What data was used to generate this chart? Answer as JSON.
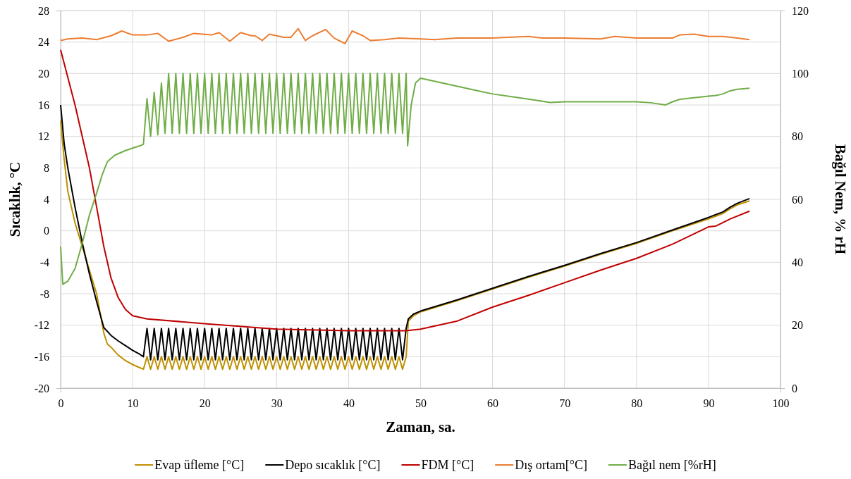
{
  "chart_data": {
    "type": "line",
    "xlabel": "Zaman, sa.",
    "ylabel": "Sıcaklık, °C",
    "y2label": "Bağıl Nem, % rH",
    "xlim": [
      0,
      100
    ],
    "xticks": [
      0,
      10,
      20,
      30,
      40,
      50,
      60,
      70,
      80,
      90,
      100
    ],
    "ylim": [
      -20,
      28
    ],
    "yticks": [
      -20,
      -16,
      -12,
      -8,
      -4,
      0,
      4,
      8,
      12,
      16,
      20,
      24,
      28
    ],
    "y2lim": [
      0,
      120
    ],
    "y2ticks": [
      0,
      20,
      40,
      60,
      80,
      100,
      120
    ],
    "grid": true,
    "legend": "bottom",
    "series": [
      {
        "name": "Evap üfleme [°C]",
        "color": "#bf9000",
        "x": [
          0,
          0.5,
          1,
          2,
          3,
          4,
          5,
          6,
          6.5,
          7,
          8,
          9,
          10,
          11,
          11.5,
          12,
          12.5,
          13,
          13.5,
          14,
          14.5,
          15,
          15.5,
          16,
          16.5,
          17,
          17.5,
          18,
          18.5,
          19,
          19.5,
          20,
          20.5,
          21,
          21.5,
          22,
          22.5,
          23,
          23.5,
          24,
          24.5,
          25,
          25.5,
          26,
          26.5,
          27,
          27.5,
          28,
          28.5,
          29,
          29.5,
          30,
          30.5,
          31,
          31.5,
          32,
          32.5,
          33,
          33.5,
          34,
          34.5,
          35,
          35.5,
          36,
          36.5,
          37,
          37.5,
          38,
          38.5,
          39,
          39.5,
          40,
          40.5,
          41,
          41.5,
          42,
          42.5,
          43,
          43.5,
          44,
          44.5,
          45,
          45.5,
          46,
          46.5,
          47,
          47.5,
          48,
          48.3,
          49,
          50,
          55,
          60,
          65,
          70,
          75,
          80,
          85,
          90,
          92,
          93,
          94,
          95.7
        ],
        "values": [
          14,
          9,
          5,
          1,
          -2,
          -5,
          -8,
          -13,
          -14.4,
          -14.8,
          -15.8,
          -16.5,
          -17,
          -17.4,
          -17.6,
          -16,
          -17.6,
          -16,
          -17.6,
          -16,
          -17.6,
          -16,
          -17.6,
          -16,
          -17.6,
          -16,
          -17.6,
          -16,
          -17.6,
          -16,
          -17.6,
          -16,
          -17.6,
          -16,
          -17.6,
          -16,
          -17.6,
          -16,
          -17.6,
          -16,
          -17.6,
          -16,
          -17.6,
          -16,
          -17.6,
          -16,
          -17.6,
          -16,
          -17.6,
          -16,
          -17.6,
          -16,
          -17.6,
          -16,
          -17.6,
          -16,
          -17.6,
          -16,
          -17.6,
          -16,
          -17.6,
          -16,
          -17.6,
          -16,
          -17.6,
          -16,
          -17.6,
          -16,
          -17.6,
          -16,
          -17.6,
          -16,
          -17.6,
          -16,
          -17.6,
          -16,
          -17.6,
          -16,
          -17.6,
          -16,
          -17.6,
          -16,
          -17.6,
          -16,
          -17.6,
          -16,
          -17.6,
          -16,
          -11.5,
          -10.8,
          -10.3,
          -8.9,
          -7.4,
          -5.9,
          -4.5,
          -3,
          -1.6,
          0,
          1.5,
          2.2,
          2.8,
          3.3,
          3.8
        ]
      },
      {
        "name": "Depo sıcaklık [°C]",
        "color": "#000000",
        "x": [
          0,
          0.5,
          1,
          2,
          3,
          4,
          5,
          6,
          7,
          8,
          9,
          10,
          11,
          11.5,
          12,
          12.5,
          13,
          13.5,
          14,
          14.5,
          15,
          15.5,
          16,
          16.5,
          17,
          17.5,
          18,
          18.5,
          19,
          19.5,
          20,
          20.5,
          21,
          21.5,
          22,
          22.5,
          23,
          23.5,
          24,
          24.5,
          25,
          25.5,
          26,
          26.5,
          27,
          27.5,
          28,
          28.5,
          29,
          29.5,
          30,
          30.5,
          31,
          31.5,
          32,
          32.5,
          33,
          33.5,
          34,
          34.5,
          35,
          35.5,
          36,
          36.5,
          37,
          37.5,
          38,
          38.5,
          39,
          39.5,
          40,
          40.5,
          41,
          41.5,
          42,
          42.5,
          43,
          43.5,
          44,
          44.5,
          45,
          45.5,
          46,
          46.5,
          47,
          47.5,
          48,
          48.3,
          49,
          50,
          55,
          60,
          65,
          70,
          75,
          80,
          85,
          90,
          92,
          93,
          94,
          95.7
        ],
        "values": [
          16,
          11,
          8,
          3,
          -1.5,
          -5.5,
          -9,
          -12.3,
          -13.3,
          -14,
          -14.6,
          -15.2,
          -15.7,
          -16,
          -12.4,
          -16.4,
          -12.4,
          -16.4,
          -12.4,
          -16.4,
          -12.4,
          -16.4,
          -12.4,
          -16.4,
          -12.4,
          -16.4,
          -12.4,
          -16.4,
          -12.4,
          -16.4,
          -12.4,
          -16.4,
          -12.4,
          -16.4,
          -12.4,
          -16.4,
          -12.4,
          -16.4,
          -12.4,
          -16.4,
          -12.4,
          -16.4,
          -12.4,
          -16.4,
          -12.4,
          -16.4,
          -12.4,
          -16.4,
          -12.4,
          -16.4,
          -12.4,
          -16.4,
          -12.4,
          -16.4,
          -12.4,
          -16.4,
          -12.4,
          -16.4,
          -12.4,
          -16.4,
          -12.4,
          -16.4,
          -12.4,
          -16.4,
          -12.4,
          -16.4,
          -12.4,
          -16.4,
          -12.4,
          -16.4,
          -12.4,
          -16.4,
          -12.4,
          -16.4,
          -12.4,
          -16.4,
          -12.4,
          -16.4,
          -12.4,
          -16.4,
          -12.4,
          -16.4,
          -12.4,
          -16.4,
          -12.4,
          -16.4,
          -12.4,
          -11.2,
          -10.6,
          -10.2,
          -8.8,
          -7.3,
          -5.8,
          -4.4,
          -2.9,
          -1.5,
          0.1,
          1.7,
          2.4,
          3,
          3.5,
          4.1
        ]
      },
      {
        "name": "FDM [°C]",
        "color": "#c00000",
        "x": [
          0,
          1,
          2,
          3,
          4,
          5,
          6,
          7,
          8,
          9,
          10,
          12,
          20,
          30,
          40,
          48,
          50,
          55,
          60,
          65,
          70,
          75,
          80,
          85,
          90,
          91,
          93,
          95.7
        ],
        "values": [
          23,
          19.5,
          16,
          12,
          8,
          3,
          -2,
          -6,
          -8.5,
          -10,
          -10.8,
          -11.2,
          -11.8,
          -12.5,
          -12.7,
          -12.7,
          -12.5,
          -11.5,
          -9.7,
          -8.2,
          -6.6,
          -5,
          -3.5,
          -1.7,
          0.5,
          0.6,
          1.5,
          2.5
        ]
      },
      {
        "name": "Dış ortam[°C]",
        "color": "#ed7d31",
        "x": [
          0,
          1,
          3,
          5,
          7,
          8.5,
          10,
          12,
          13.5,
          15,
          17,
          18.5,
          21,
          22,
          23.5,
          25,
          26.5,
          27,
          28,
          29,
          31,
          32,
          33,
          34,
          35,
          36.8,
          38,
          39.5,
          40.5,
          42,
          43,
          45,
          47,
          50,
          52,
          55,
          60,
          62,
          65,
          67,
          70,
          75,
          77,
          80,
          85,
          86,
          88,
          90,
          92,
          94,
          95.7
        ],
        "values": [
          24.2,
          24.4,
          24.5,
          24.3,
          24.8,
          25.4,
          24.9,
          24.9,
          25.1,
          24.1,
          24.6,
          25.1,
          24.9,
          25.2,
          24.1,
          25.2,
          24.8,
          24.8,
          24.2,
          25,
          24.6,
          24.6,
          25.7,
          24.2,
          24.8,
          25.6,
          24.5,
          23.8,
          25.4,
          24.8,
          24.2,
          24.3,
          24.5,
          24.4,
          24.3,
          24.5,
          24.5,
          24.6,
          24.7,
          24.5,
          24.5,
          24.4,
          24.7,
          24.5,
          24.5,
          24.9,
          25,
          24.7,
          24.7,
          24.5,
          24.3
        ]
      },
      {
        "name": "Bağıl nem [%rH]",
        "color": "#70ad47",
        "axis": "y2",
        "x": [
          0,
          0.3,
          1,
          2,
          3,
          4,
          5,
          5.8,
          6.5,
          7.5,
          9,
          10,
          11,
          11.5,
          12,
          12.5,
          13,
          13.5,
          14,
          14.5,
          15,
          15.5,
          16,
          16.5,
          17,
          17.5,
          18,
          18.5,
          19,
          19.5,
          20,
          20.5,
          21,
          21.5,
          22,
          22.5,
          23,
          23.5,
          24,
          24.5,
          25,
          25.5,
          26,
          26.5,
          27,
          27.5,
          28,
          28.5,
          29,
          29.5,
          30,
          30.5,
          31,
          31.5,
          32,
          32.5,
          33,
          33.5,
          34,
          34.5,
          35,
          35.5,
          36,
          36.5,
          37,
          37.5,
          38,
          38.5,
          39,
          39.5,
          40,
          40.5,
          41,
          41.5,
          42,
          42.5,
          43,
          43.5,
          44,
          44.5,
          45,
          45.5,
          46,
          46.5,
          47,
          47.5,
          48,
          48.2,
          48.7,
          49.3,
          50,
          52,
          55,
          58,
          60,
          63,
          66,
          68,
          70,
          75,
          80,
          82,
          84,
          85,
          86,
          88,
          90,
          91,
          92,
          93,
          94,
          95.7
        ],
        "values": [
          45,
          33,
          34,
          38,
          46,
          55,
          62,
          68,
          72,
          74,
          75.5,
          76.3,
          77,
          77.5,
          92,
          80,
          94,
          80.5,
          97,
          81,
          100,
          81,
          100,
          81,
          100,
          81,
          100,
          81,
          100,
          81,
          100,
          81,
          100,
          81,
          100,
          81,
          100,
          81,
          100,
          81,
          100,
          81,
          100,
          81,
          100,
          81,
          100,
          81,
          100,
          81,
          100,
          81,
          100,
          81,
          100,
          81,
          100,
          81,
          100,
          81,
          100,
          81,
          100,
          81,
          100,
          81,
          100,
          81,
          100,
          81,
          100,
          81,
          100,
          81,
          100,
          81,
          100,
          81,
          100,
          81,
          100,
          81,
          100,
          81,
          100,
          81,
          100,
          77,
          90,
          97,
          98.5,
          97.5,
          96,
          94.5,
          93.5,
          92.5,
          91.5,
          90.8,
          91,
          91,
          91,
          90.7,
          90,
          91,
          91.8,
          92.3,
          92.8,
          93,
          93.5,
          94.5,
          95,
          95.3
        ]
      }
    ]
  }
}
